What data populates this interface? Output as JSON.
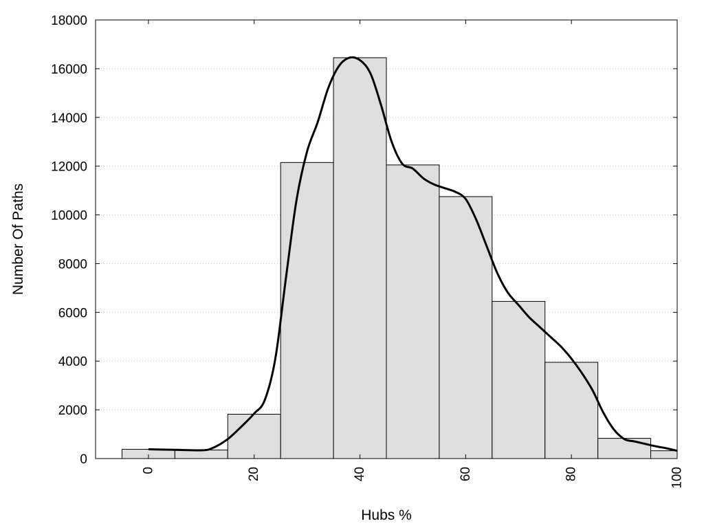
{
  "chart_data": {
    "type": "bar",
    "title": "",
    "xlabel": "Hubs %",
    "ylabel": "Number Of Paths",
    "xlim": [
      -10,
      100
    ],
    "ylim": [
      0,
      18000
    ],
    "x_ticks": [
      0,
      20,
      40,
      60,
      80,
      100
    ],
    "y_ticks": [
      0,
      2000,
      4000,
      6000,
      8000,
      10000,
      12000,
      14000,
      16000,
      18000
    ],
    "grid": "horizontal dotted",
    "bin_width": 10,
    "series": [
      {
        "kind": "histogram",
        "bin_centers": [
          0,
          10,
          20,
          30,
          40,
          50,
          60,
          70,
          80,
          90,
          100
        ],
        "values": [
          380,
          350,
          1820,
          12150,
          16450,
          12050,
          10750,
          6450,
          3950,
          830,
          320
        ]
      },
      {
        "kind": "density-curve",
        "x": [
          0,
          5,
          10,
          12,
          15,
          18,
          20,
          22,
          24,
          26,
          28,
          30,
          32,
          34,
          36,
          38,
          40,
          42,
          44,
          46,
          48,
          50,
          52,
          54,
          56,
          58,
          60,
          62,
          64,
          66,
          68,
          70,
          72,
          74,
          76,
          78,
          80,
          82,
          84,
          86,
          88,
          90,
          92,
          94,
          96,
          98,
          100
        ],
        "y": [
          380,
          360,
          340,
          420,
          800,
          1400,
          1850,
          2400,
          4100,
          7400,
          10600,
          12600,
          13800,
          15200,
          16100,
          16450,
          16350,
          15800,
          14500,
          13000,
          12100,
          11900,
          11500,
          11250,
          11100,
          10950,
          10650,
          9800,
          8700,
          7600,
          6800,
          6300,
          5800,
          5400,
          5000,
          4600,
          4100,
          3500,
          2800,
          1900,
          1200,
          800,
          700,
          600,
          500,
          420,
          320
        ]
      }
    ],
    "colors": {
      "bar_fill": "#dedede",
      "bar_stroke": "#000000",
      "curve": "#000000",
      "grid": "#c8c8c8"
    }
  }
}
